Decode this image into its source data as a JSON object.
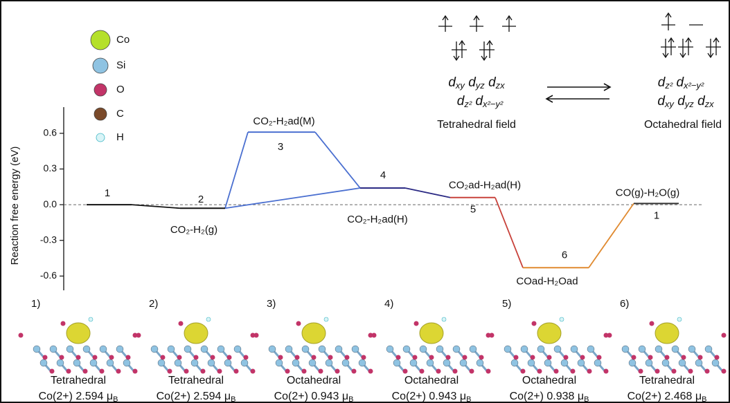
{
  "atom_legend": [
    {
      "label": "Co",
      "color": "#b5e02a"
    },
    {
      "label": "Si",
      "color": "#8fc3e2"
    },
    {
      "label": "O",
      "color": "#c23468"
    },
    {
      "label": "C",
      "color": "#7a4a2a"
    },
    {
      "label": "H",
      "color": "#d9f4f7"
    }
  ],
  "crystal_field": {
    "tetrahedral": {
      "upper": [
        {
          "letter": "d",
          "sub": "xy"
        },
        {
          "letter": "d",
          "sub": "yz"
        },
        {
          "letter": "d",
          "sub": "zx"
        }
      ],
      "lower": [
        {
          "letter": "d",
          "sub": "z²"
        },
        {
          "letter": "d",
          "sub": "x²−y²"
        }
      ],
      "caption": "Tetrahedral field"
    },
    "octahedral": {
      "upper": [
        {
          "letter": "d",
          "sub": "z²"
        },
        {
          "letter": "d",
          "sub": "x²−y²"
        }
      ],
      "lower": [
        {
          "letter": "d",
          "sub": "xy"
        },
        {
          "letter": "d",
          "sub": "yz"
        },
        {
          "letter": "d",
          "sub": "zx"
        }
      ],
      "caption": "Octahedral field"
    }
  },
  "chart_data": {
    "type": "energy-profile",
    "y_label": "Reaction free energy (eV)",
    "ylim": [
      -0.72,
      0.82
    ],
    "yticks": [
      -0.6,
      -0.3,
      {
        "value": 0,
        "label": "0.0"
      },
      0.3,
      0.6
    ],
    "levels": [
      {
        "number": "1",
        "label": null,
        "value": 0,
        "color": "#111111"
      },
      {
        "number": "2",
        "label": "CO₂-H₂(g)",
        "value": -0.03,
        "color": "#111111"
      },
      {
        "number": "3",
        "label": "CO₂-H₂ad(M)",
        "value": 0.61,
        "color": "#4a6fd0"
      },
      {
        "number": "4",
        "label": "CO₂-H₂ad(H)",
        "value": 0.14,
        "color": "#2b2a84"
      },
      {
        "number": "5",
        "label": "CO₂ad-H₂ad(H)",
        "value": 0.06,
        "color": "#c8413a"
      },
      {
        "number": "6",
        "label": "COad-H₂Oad",
        "value": -0.53,
        "color": "#e08a30"
      },
      {
        "number": "1",
        "label": "CO(g)-H₂O(g)",
        "value": 0.01,
        "color": "#333333"
      }
    ],
    "connectors": [
      {
        "from": 0,
        "to": 1,
        "color": "#111111"
      },
      {
        "from": 1,
        "to": 2,
        "color": "#4a6fd0"
      },
      {
        "from": 2,
        "to": 3,
        "color": "#4a6fd0"
      },
      {
        "from": 1,
        "to": 3,
        "color": "#4a6fd0"
      },
      {
        "from": 3,
        "to": 4,
        "color": "#2b2a84"
      },
      {
        "from": 4,
        "to": 5,
        "color": "#c8413a"
      },
      {
        "from": 5,
        "to": 6,
        "color": "#e08a30"
      }
    ]
  },
  "structures": [
    {
      "tag": "1)",
      "field": "Tetrahedral",
      "moment": "Co(2+) 2.594 μ",
      "moment_sub": "B"
    },
    {
      "tag": "2)",
      "field": "Tetrahedral",
      "moment": "Co(2+) 2.594 μ",
      "moment_sub": "B"
    },
    {
      "tag": "3)",
      "field": "Octahedral",
      "moment": "Co(2+) 0.943 μ",
      "moment_sub": "B"
    },
    {
      "tag": "4)",
      "field": "Octahedral",
      "moment": "Co(2+) 0.943 μ",
      "moment_sub": "B"
    },
    {
      "tag": "5)",
      "field": "Octahedral",
      "moment": "Co(2+) 0.938 μ",
      "moment_sub": "B"
    },
    {
      "tag": "6)",
      "field": "Tetrahedral",
      "moment": "Co(2+) 2.468 μ",
      "moment_sub": "B"
    }
  ]
}
